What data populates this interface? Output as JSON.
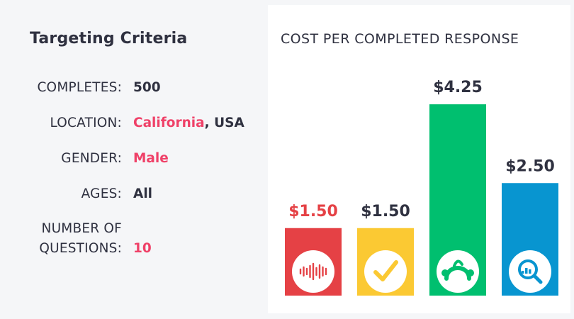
{
  "criteria": {
    "title": "Targeting Criteria",
    "rows": [
      {
        "label": "COMPLETES:",
        "value": "500"
      },
      {
        "label": "LOCATION:",
        "value_highlight": "California",
        "value_rest": ", USA"
      },
      {
        "label": "GENDER:",
        "value_highlight": "Male"
      },
      {
        "label": "AGES:",
        "value": "All"
      },
      {
        "label_line1": "NUMBER OF",
        "label_line2": "QUESTIONS:",
        "value_highlight": "10"
      }
    ]
  },
  "colors": {
    "highlight": "#ef4168",
    "text": "#2f3140"
  },
  "chart_data": {
    "type": "bar",
    "title": "COST PER COMPLETED RESPONSE",
    "categories": [
      "",
      "",
      "",
      ""
    ],
    "values": [
      1.5,
      1.5,
      4.25,
      2.5
    ],
    "value_labels": [
      "$1.50",
      "$1.50",
      "$4.25",
      "$2.50"
    ],
    "bar_colors": [
      "#e54145",
      "#fbc933",
      "#00bf6f",
      "#0895d0"
    ],
    "label_colors": [
      "#e54145",
      "#2f3140",
      "#2f3140",
      "#2f3140"
    ],
    "icons": [
      "audio-wave-logo-icon",
      "checkmark-logo-icon",
      "monkey-logo-icon",
      "magnifier-chart-logo-icon"
    ],
    "grid": false,
    "legend": "none"
  }
}
